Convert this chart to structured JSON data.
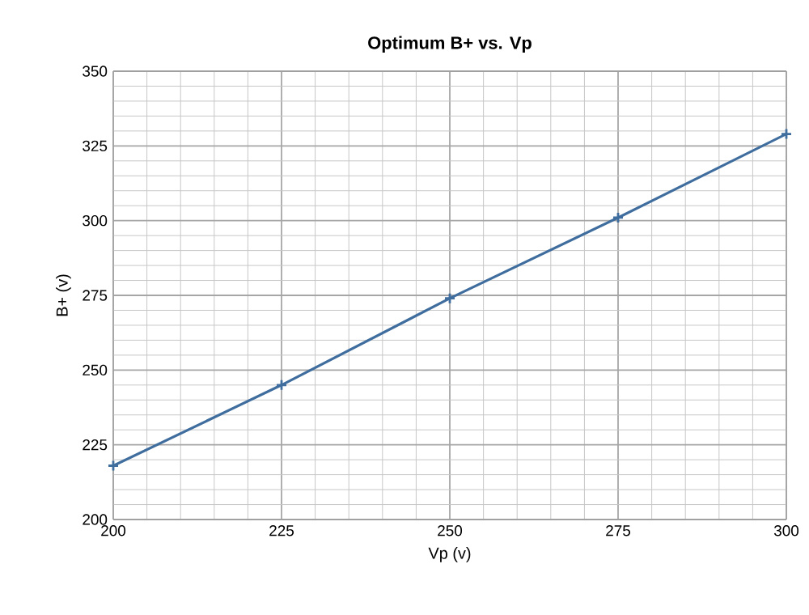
{
  "chart_data": {
    "type": "line",
    "title": "Optimum B+ vs. Vp",
    "xlabel": "Vp (v)",
    "ylabel": "B+ (v)",
    "x": [
      200,
      225,
      250,
      275,
      300
    ],
    "series": [
      {
        "color": "#3f6d9e",
        "values": [
          218,
          245,
          274,
          301,
          329
        ]
      }
    ],
    "xlim": [
      200,
      300
    ],
    "xticks": [
      200,
      225,
      250,
      275,
      300
    ],
    "ylim": [
      200,
      350
    ],
    "yticks": [
      200,
      225,
      250,
      275,
      300,
      325,
      350
    ],
    "grid": true,
    "marker": "cross",
    "line_style": "solid"
  }
}
